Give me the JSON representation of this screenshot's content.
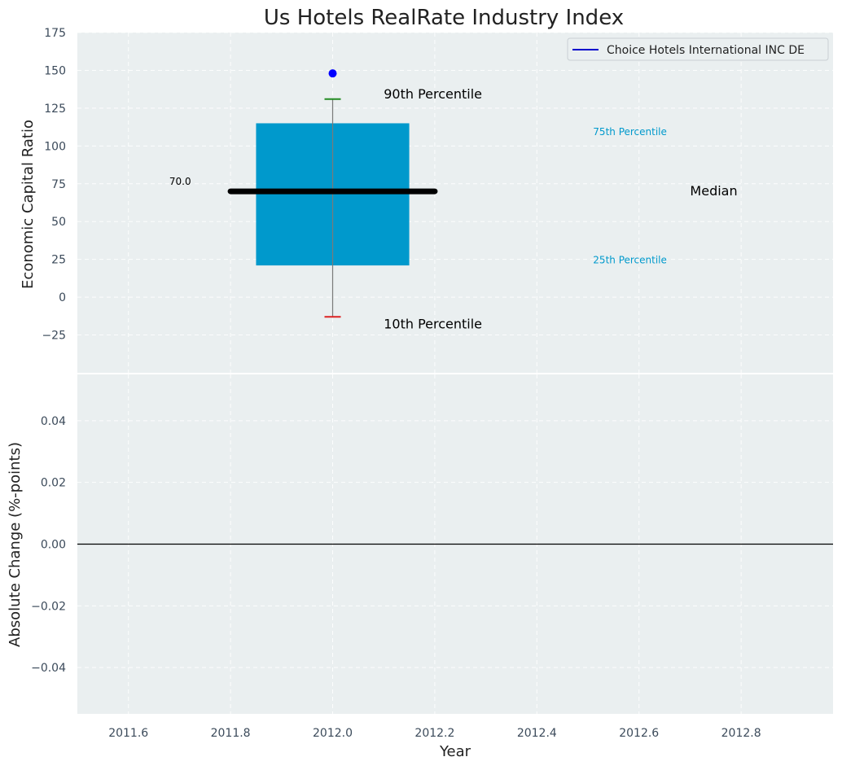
{
  "chart_data": [
    {
      "type": "box",
      "title": "Us Hotels RealRate Industry Index",
      "ylabel": "Economic Capital Ratio",
      "ylim": [
        -50,
        175
      ],
      "xlim": [
        2011.5,
        2012.98
      ],
      "yticks": [
        -25,
        0,
        25,
        50,
        75,
        100,
        125,
        150,
        175
      ],
      "grid": true,
      "legend_position": "top-right",
      "legend": [
        {
          "label": "Choice Hotels International INC DE",
          "color": "#0000cc"
        }
      ],
      "box": {
        "x": 2012.0,
        "q1": 21,
        "q3": 115,
        "median": 70,
        "p10": -13,
        "p90": 131,
        "box_left": 2011.85,
        "box_right": 2012.15,
        "median_left": 2011.8,
        "median_right": 2012.2,
        "box_color": "#0099cc",
        "median_color": "#000000",
        "p90_color": "#228b22",
        "p10_color": "#dd2222"
      },
      "company_point": {
        "x": 2012.0,
        "y": 148,
        "color": "#0000ff"
      },
      "annotations": [
        {
          "text": "90th Percentile",
          "x": 2012.1,
          "y": 134,
          "color": "#000000",
          "size": "large"
        },
        {
          "text": "10th Percentile",
          "x": 2012.1,
          "y": -18,
          "color": "#000000",
          "size": "large"
        },
        {
          "text": "75th Percentile",
          "x": 2012.51,
          "y": 110,
          "color": "#0099cc",
          "size": "small"
        },
        {
          "text": "25th Percentile",
          "x": 2012.51,
          "y": 25,
          "color": "#0099cc",
          "size": "small"
        },
        {
          "text": "Median",
          "x": 2012.7,
          "y": 70,
          "color": "#000000",
          "size": "large"
        },
        {
          "text": "70.0",
          "x": 2011.68,
          "y": 77,
          "color": "#000000",
          "size": "tiny"
        }
      ]
    },
    {
      "type": "line",
      "ylabel": "Absolute Change (%-points)",
      "xlabel": "Year",
      "ylim": [
        -0.055,
        0.055
      ],
      "xlim": [
        2011.5,
        2012.98
      ],
      "yticks": [
        -0.04,
        -0.02,
        0.0,
        0.02,
        0.04
      ],
      "ytick_labels": [
        "−0.04",
        "−0.02",
        "0.00",
        "0.02",
        "0.04"
      ],
      "xticks": [
        2011.6,
        2011.8,
        2012.0,
        2012.2,
        2012.4,
        2012.6,
        2012.8
      ],
      "xtick_labels": [
        "2011.6",
        "2011.8",
        "2012.0",
        "2012.2",
        "2012.4",
        "2012.6",
        "2012.8"
      ],
      "grid": true,
      "reference_line": {
        "y": 0.0,
        "color": "#000000"
      },
      "series": []
    }
  ]
}
